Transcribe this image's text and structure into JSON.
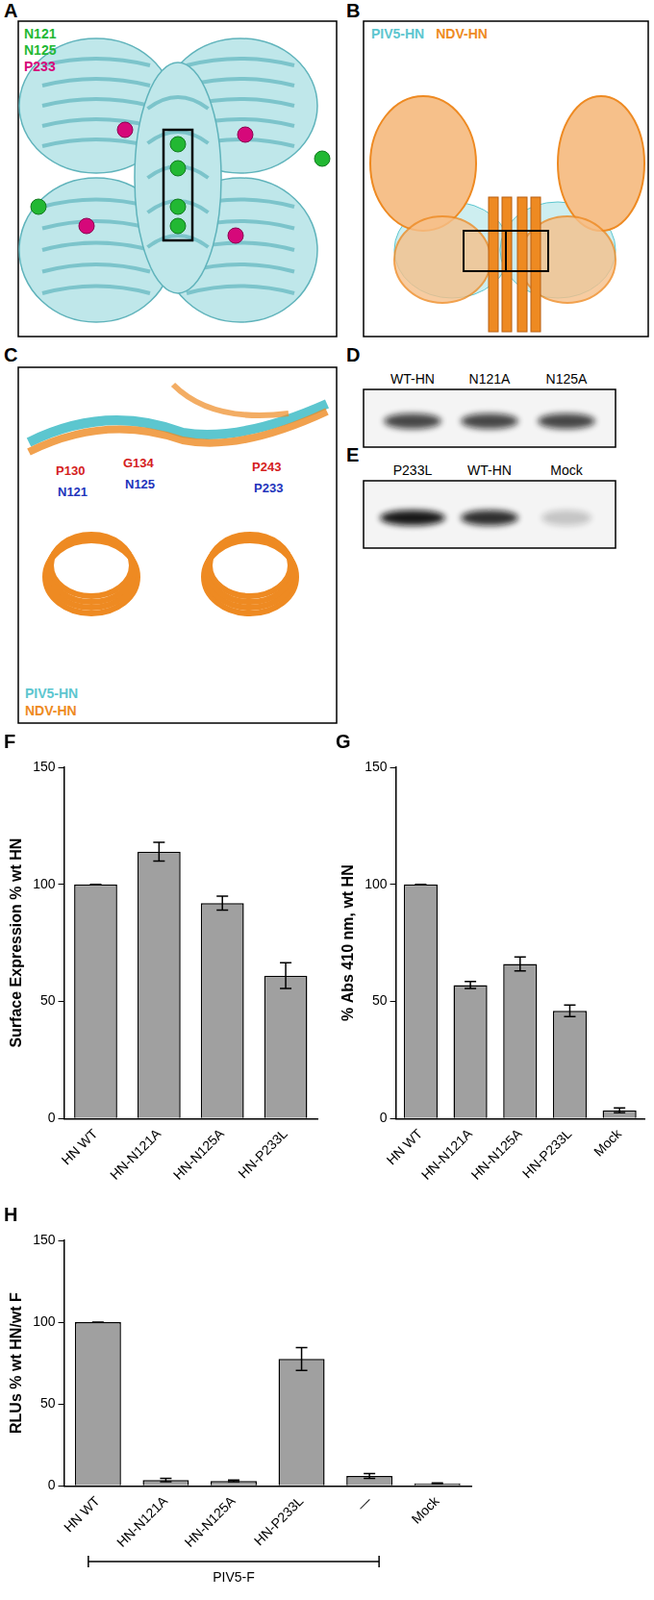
{
  "figure": {
    "A": {
      "label": "A",
      "legend": [
        {
          "text": "N121",
          "color": "#22b833"
        },
        {
          "text": "N125",
          "color": "#22b833"
        },
        {
          "text": "P233",
          "color": "#d6087a"
        }
      ]
    },
    "B": {
      "label": "B",
      "legend": [
        {
          "text": "PIV5-HN",
          "color": "#5cc6cf"
        },
        {
          "text": "NDV-HN",
          "color": "#ee8a22"
        }
      ]
    },
    "C": {
      "label": "C",
      "annotations": [
        {
          "text": "P130",
          "color": "#d42020"
        },
        {
          "text": "N121",
          "color": "#2233bb"
        },
        {
          "text": "G134",
          "color": "#d42020"
        },
        {
          "text": "N125",
          "color": "#2233bb"
        },
        {
          "text": "P243",
          "color": "#d42020"
        },
        {
          "text": "P233",
          "color": "#2233bb"
        }
      ],
      "legend": [
        {
          "text": "PIV5-HN",
          "color": "#5cc6cf"
        },
        {
          "text": "NDV-HN",
          "color": "#ee8a22"
        }
      ]
    },
    "D": {
      "label": "D",
      "lanes": [
        "WT-HN",
        "N121A",
        "N125A"
      ]
    },
    "E": {
      "label": "E",
      "lanes": [
        "P233L",
        "WT-HN",
        "Mock"
      ]
    }
  },
  "chart_data": [
    {
      "type": "bar",
      "title": "F",
      "y_label": "Surface Expression % wt HN",
      "categories": [
        "HN WT",
        "HN-N121A",
        "HN-N125A",
        "HN-P233L"
      ],
      "values": [
        100,
        114,
        92,
        61
      ],
      "errors": [
        0,
        4,
        3,
        5.5
      ],
      "color": "#a0a0a0",
      "ylim": [
        0,
        150
      ],
      "yticks": [
        0,
        50,
        100,
        150
      ],
      "grid": false
    },
    {
      "type": "bar",
      "title": "G",
      "y_label": "% Abs 410 nm, wt HN",
      "categories": [
        "HN WT",
        "HN-N121A",
        "HN-N125A",
        "HN-P233L",
        "Mock"
      ],
      "values": [
        100,
        57,
        66,
        46,
        3.5
      ],
      "errors": [
        0,
        1.5,
        3,
        2.5,
        1
      ],
      "color": "#a0a0a0",
      "ylim": [
        0,
        150
      ],
      "yticks": [
        0,
        50,
        100,
        150
      ],
      "grid": false
    },
    {
      "type": "bar",
      "title": "H",
      "y_label": "RLUs % wt HN/wt F",
      "categories": [
        "HN WT",
        "HN-N121A",
        "HN-N125A",
        "HN-P233L",
        "—",
        "Mock"
      ],
      "values": [
        100,
        3.5,
        3,
        77.5,
        6,
        1.5
      ],
      "errors": [
        0,
        1,
        0.5,
        7,
        1.5,
        0.3
      ],
      "bracket": {
        "label": "PIV5-F",
        "from": "HN WT",
        "to": "—"
      },
      "color": "#a0a0a0",
      "ylim": [
        0,
        150
      ],
      "yticks": [
        0,
        50,
        100,
        150
      ],
      "grid": false
    }
  ]
}
